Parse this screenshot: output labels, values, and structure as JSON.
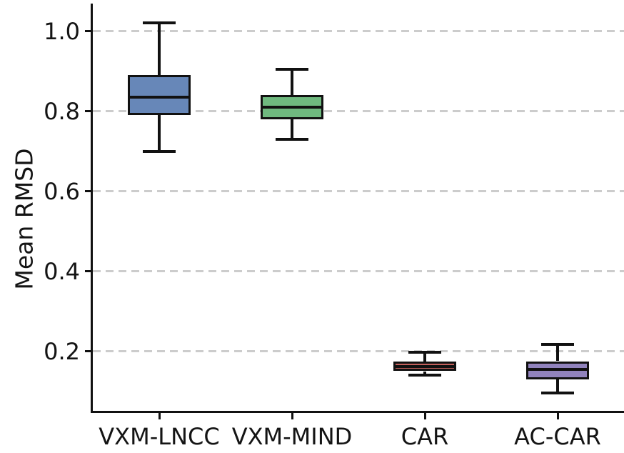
{
  "chart_data": {
    "type": "boxplot",
    "title": "",
    "xlabel": "",
    "ylabel": "Mean RMSD",
    "categories": [
      "VXM-LNCC",
      "VXM-MIND",
      "CAR",
      "AC-CAR"
    ],
    "series": [
      {
        "name": "VXM-LNCC",
        "whisker_low": 0.7,
        "q1": 0.79,
        "median": 0.835,
        "q3": 0.89,
        "whisker_high": 1.02,
        "color": "#6787b8"
      },
      {
        "name": "VXM-MIND",
        "whisker_low": 0.73,
        "q1": 0.78,
        "median": 0.81,
        "q3": 0.84,
        "whisker_high": 0.905,
        "color": "#6fb97f"
      },
      {
        "name": "CAR",
        "whisker_low": 0.14,
        "q1": 0.15,
        "median": 0.162,
        "q3": 0.174,
        "whisker_high": 0.198,
        "color": "#c4605c"
      },
      {
        "name": "AC-CAR",
        "whisker_low": 0.095,
        "q1": 0.13,
        "median": 0.155,
        "q3": 0.175,
        "whisker_high": 0.217,
        "color": "#9183bd"
      }
    ],
    "yticks": [
      1.0,
      0.8,
      0.6,
      0.4,
      0.2
    ],
    "ytick_labels": [
      "1.0",
      "0.8",
      "0.6",
      "0.4",
      "0.2"
    ],
    "ylim": [
      0.047,
      1.063
    ],
    "grid": "horizontal dashed",
    "grid_color": "#cccccc",
    "box_line_color": "#111111",
    "legend": "none"
  }
}
